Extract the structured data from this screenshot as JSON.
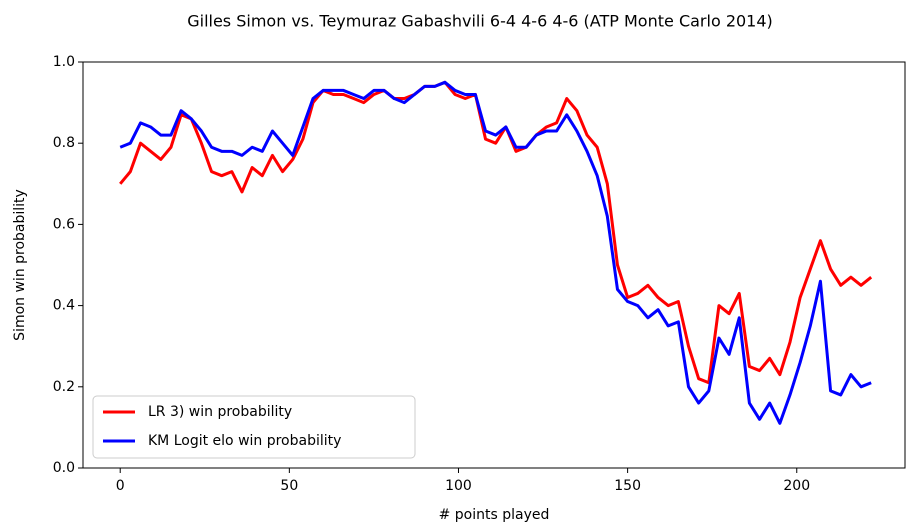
{
  "chart_data": {
    "type": "line",
    "title": "Gilles Simon vs. Teymuraz Gabashvili 6-4 4-6 4-6 (ATP Monte Carlo 2014)",
    "xlabel": "# points played",
    "ylabel": "Simon win probability",
    "x": [
      0,
      3,
      6,
      9,
      12,
      15,
      18,
      21,
      24,
      27,
      30,
      33,
      36,
      39,
      42,
      45,
      48,
      51,
      54,
      57,
      60,
      63,
      66,
      69,
      72,
      75,
      78,
      81,
      84,
      87,
      90,
      93,
      96,
      99,
      102,
      105,
      108,
      111,
      114,
      117,
      120,
      123,
      126,
      129,
      132,
      135,
      138,
      141,
      144,
      147,
      150,
      153,
      156,
      159,
      162,
      165,
      168,
      171,
      174,
      177,
      180,
      183,
      186,
      189,
      192,
      195,
      198,
      201,
      204,
      207,
      210,
      213,
      216,
      219,
      222
    ],
    "series": [
      {
        "name": "LR 3) win probability",
        "color": "#ff0000",
        "values": [
          0.7,
          0.73,
          0.8,
          0.78,
          0.76,
          0.79,
          0.87,
          0.86,
          0.8,
          0.73,
          0.72,
          0.73,
          0.68,
          0.74,
          0.72,
          0.77,
          0.73,
          0.76,
          0.81,
          0.9,
          0.93,
          0.92,
          0.92,
          0.91,
          0.9,
          0.92,
          0.93,
          0.91,
          0.91,
          0.92,
          0.94,
          0.94,
          0.95,
          0.92,
          0.91,
          0.92,
          0.81,
          0.8,
          0.84,
          0.78,
          0.79,
          0.82,
          0.84,
          0.85,
          0.91,
          0.88,
          0.82,
          0.79,
          0.7,
          0.5,
          0.42,
          0.43,
          0.45,
          0.42,
          0.4,
          0.41,
          0.3,
          0.22,
          0.21,
          0.4,
          0.38,
          0.43,
          0.25,
          0.24,
          0.27,
          0.23,
          0.31,
          0.42,
          0.49,
          0.56,
          0.49,
          0.45,
          0.47,
          0.45,
          0.47
        ]
      },
      {
        "name": "KM Logit elo win probability",
        "color": "#0000ff",
        "values": [
          0.79,
          0.8,
          0.85,
          0.84,
          0.82,
          0.82,
          0.88,
          0.86,
          0.83,
          0.79,
          0.78,
          0.78,
          0.77,
          0.79,
          0.78,
          0.83,
          0.8,
          0.77,
          0.84,
          0.91,
          0.93,
          0.93,
          0.93,
          0.92,
          0.91,
          0.93,
          0.93,
          0.91,
          0.9,
          0.92,
          0.94,
          0.94,
          0.95,
          0.93,
          0.92,
          0.92,
          0.83,
          0.82,
          0.84,
          0.79,
          0.79,
          0.82,
          0.83,
          0.83,
          0.87,
          0.83,
          0.78,
          0.72,
          0.62,
          0.44,
          0.41,
          0.4,
          0.37,
          0.39,
          0.35,
          0.36,
          0.2,
          0.16,
          0.19,
          0.32,
          0.28,
          0.37,
          0.16,
          0.12,
          0.16,
          0.11,
          0.18,
          0.26,
          0.35,
          0.46,
          0.19,
          0.18,
          0.23,
          0.2,
          0.21
        ]
      }
    ],
    "xlim": [
      -11,
      232
    ],
    "ylim": [
      0,
      1
    ],
    "xticks": [
      0,
      50,
      100,
      150,
      200
    ],
    "yticks": [
      {
        "value": 0,
        "label": "0.0"
      },
      0.2,
      0.4,
      0.6,
      0.8,
      {
        "value": 1,
        "label": "1.0"
      }
    ],
    "legend": "lower left"
  }
}
